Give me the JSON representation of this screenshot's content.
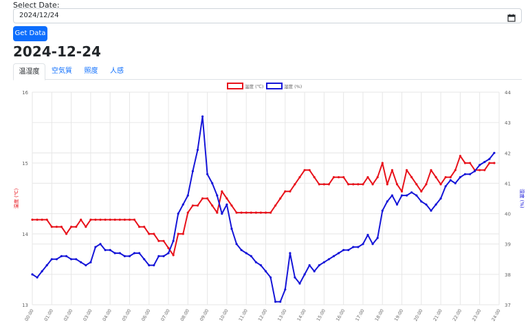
{
  "form": {
    "label": "Select Date:",
    "date_value": "2024/12/24",
    "button_label": "Get Data"
  },
  "heading": "2024-12-24",
  "tabs": [
    {
      "label": "温湿度",
      "active": true
    },
    {
      "label": "空気質",
      "active": false
    },
    {
      "label": "照度",
      "active": false
    },
    {
      "label": "人感",
      "active": false
    }
  ],
  "icons": {
    "calendar": "calendar-icon"
  },
  "colors": {
    "temperature": "#e8121b",
    "humidity": "#1515d8",
    "button": "#0d6efd"
  },
  "chart_data": {
    "type": "line",
    "x": [
      "00:00",
      "00:15",
      "00:30",
      "00:45",
      "01:00",
      "01:15",
      "01:30",
      "01:45",
      "02:00",
      "02:15",
      "02:30",
      "02:45",
      "03:00",
      "03:15",
      "03:30",
      "03:45",
      "04:00",
      "04:15",
      "04:30",
      "04:45",
      "05:00",
      "05:15",
      "05:30",
      "05:45",
      "06:00",
      "06:15",
      "06:30",
      "06:45",
      "07:00",
      "07:15",
      "07:30",
      "07:45",
      "08:00",
      "08:15",
      "08:30",
      "08:45",
      "09:00",
      "09:15",
      "09:30",
      "09:45",
      "10:00",
      "10:15",
      "10:30",
      "10:45",
      "11:00",
      "11:15",
      "11:30",
      "11:45",
      "12:00",
      "12:15",
      "12:30",
      "12:45",
      "13:00",
      "13:15",
      "13:30",
      "13:45",
      "14:00",
      "14:15",
      "14:30",
      "14:45",
      "15:00",
      "15:15",
      "15:30",
      "15:45",
      "16:00",
      "16:15",
      "16:30",
      "16:45",
      "17:00",
      "17:15",
      "17:30",
      "17:45",
      "18:00",
      "18:15",
      "18:30",
      "18:45",
      "19:00",
      "19:15",
      "19:30",
      "19:45",
      "20:00",
      "20:15",
      "20:30",
      "20:45",
      "21:00",
      "21:15",
      "21:30",
      "21:45",
      "22:00",
      "22:15",
      "22:30",
      "22:45",
      "23:00",
      "23:15",
      "23:30",
      "23:45"
    ],
    "x_ticks": [
      "00:00",
      "01:00",
      "02:00",
      "03:00",
      "04:00",
      "05:00",
      "06:00",
      "07:00",
      "08:00",
      "09:00",
      "10:00",
      "11:00",
      "12:00",
      "13:00",
      "14:00",
      "15:00",
      "16:00",
      "17:00",
      "18:00",
      "19:00",
      "20:00",
      "21:00",
      "22:00",
      "23:00",
      "24:00"
    ],
    "series": [
      {
        "name": "温度 (℃)",
        "axis": "left",
        "values": [
          14.2,
          14.2,
          14.2,
          14.2,
          14.1,
          14.1,
          14.1,
          14.0,
          14.1,
          14.1,
          14.2,
          14.1,
          14.2,
          14.2,
          14.2,
          14.2,
          14.2,
          14.2,
          14.2,
          14.2,
          14.2,
          14.2,
          14.1,
          14.1,
          14.0,
          14.0,
          13.9,
          13.9,
          13.8,
          13.7,
          14.0,
          14.0,
          14.3,
          14.4,
          14.4,
          14.5,
          14.5,
          14.4,
          14.3,
          14.6,
          14.5,
          14.4,
          14.3,
          14.3,
          14.3,
          14.3,
          14.3,
          14.3,
          14.3,
          14.3,
          14.4,
          14.5,
          14.6,
          14.6,
          14.7,
          14.8,
          14.9,
          14.9,
          14.8,
          14.7,
          14.7,
          14.7,
          14.8,
          14.8,
          14.8,
          14.7,
          14.7,
          14.7,
          14.7,
          14.8,
          14.7,
          14.8,
          15.0,
          14.7,
          14.9,
          14.7,
          14.6,
          14.9,
          14.8,
          14.7,
          14.6,
          14.7,
          14.9,
          14.8,
          14.7,
          14.8,
          14.8,
          14.9,
          15.1,
          15.0,
          15.0,
          14.9,
          14.9,
          14.9,
          15.0,
          15.0
        ]
      },
      {
        "name": "湿度 (%)",
        "axis": "right",
        "values": [
          38.0,
          37.9,
          38.1,
          38.3,
          38.5,
          38.5,
          38.6,
          38.6,
          38.5,
          38.5,
          38.4,
          38.3,
          38.4,
          38.9,
          39.0,
          38.8,
          38.8,
          38.7,
          38.7,
          38.6,
          38.6,
          38.7,
          38.7,
          38.5,
          38.3,
          38.3,
          38.6,
          38.6,
          38.7,
          39.1,
          40.0,
          40.3,
          40.6,
          41.4,
          42.1,
          43.2,
          41.3,
          41.0,
          40.6,
          40.0,
          40.3,
          39.5,
          39.0,
          38.8,
          38.7,
          38.6,
          38.4,
          38.3,
          38.1,
          37.9,
          37.1,
          37.1,
          37.5,
          38.7,
          37.9,
          37.7,
          38.0,
          38.3,
          38.1,
          38.3,
          38.4,
          38.5,
          38.6,
          38.7,
          38.8,
          38.8,
          38.9,
          38.9,
          39.0,
          39.3,
          39.0,
          39.2,
          40.1,
          40.4,
          40.6,
          40.3,
          40.6,
          40.6,
          40.7,
          40.6,
          40.4,
          40.3,
          40.1,
          40.3,
          40.5,
          40.9,
          41.1,
          41.0,
          41.2,
          41.3,
          41.3,
          41.4,
          41.6,
          41.7,
          41.8,
          42.0
        ]
      }
    ],
    "y_left": {
      "label": "温度 (℃)",
      "min": 13,
      "max": 16,
      "ticks": [
        13,
        14,
        15,
        16
      ]
    },
    "y_right": {
      "label": "湿度 (%)",
      "min": 37,
      "max": 44,
      "ticks": [
        37,
        38,
        39,
        40,
        41,
        42,
        43,
        44
      ]
    },
    "legend_position": "top-center",
    "grid": true
  }
}
